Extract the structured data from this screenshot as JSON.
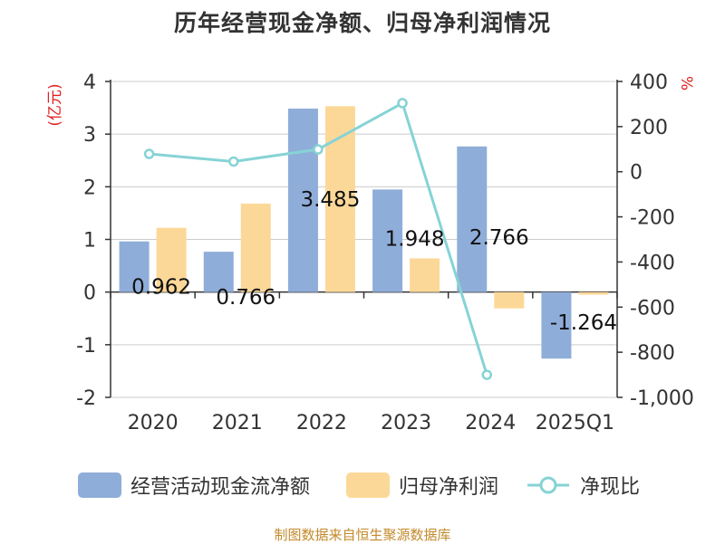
{
  "chart_data": {
    "type": "bar",
    "title": "历年经营现金净额、归母净利润情况",
    "categories": [
      "2020",
      "2021",
      "2022",
      "2023",
      "2024",
      "2025Q1"
    ],
    "y_left": {
      "unit_label": "(亿元)",
      "ticks": [
        "4",
        "3",
        "2",
        "1",
        "0",
        "-1",
        "-2"
      ],
      "ylim": [
        -2,
        4
      ]
    },
    "y_right": {
      "unit_label": "%",
      "ticks": [
        "400",
        "200",
        "0",
        "-200",
        "-400",
        "-600",
        "-800",
        "-1,000"
      ],
      "ylim": [
        -1000,
        400
      ]
    },
    "series": [
      {
        "name": "经营活动现金流净额",
        "kind": "bar",
        "axis": "left",
        "color": "#8fadd9",
        "values": [
          0.962,
          0.766,
          3.485,
          1.948,
          2.766,
          -1.264
        ],
        "labels": [
          "0.962",
          "0.766",
          "3.485",
          "1.948",
          "2.766",
          "-1.264"
        ]
      },
      {
        "name": "归母净利润",
        "kind": "bar",
        "axis": "left",
        "color": "#fcd898",
        "values": [
          1.22,
          1.68,
          3.53,
          0.64,
          -0.31,
          -0.05
        ]
      },
      {
        "name": "净现比",
        "kind": "line",
        "axis": "right",
        "color": "#86d3d5",
        "values": [
          79,
          45,
          99,
          304,
          -900,
          null
        ]
      }
    ],
    "legend_position": "bottom",
    "grid": true
  },
  "source_note": "制图数据来自恒生聚源数据库"
}
